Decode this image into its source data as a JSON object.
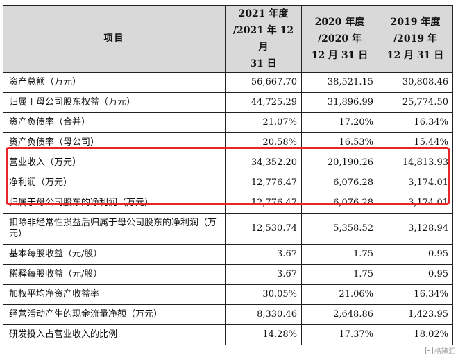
{
  "table": {
    "header": {
      "item": "项目",
      "col2021": [
        "2021 年度",
        "/2021 年 12 月",
        "31 日"
      ],
      "col2020": [
        "2020 年度",
        "/2020 年",
        "12 月 31 日"
      ],
      "col2019": [
        "2019 年度",
        "/2019 年",
        "12 月 31 日"
      ]
    },
    "rows": [
      {
        "label": "资产总额（万元）",
        "v2021": "56,667.70",
        "v2020": "38,521.15",
        "v2019": "30,808.46"
      },
      {
        "label": "归属于母公司股东权益（万元）",
        "v2021": "44,725.29",
        "v2020": "31,896.99",
        "v2019": "25,774.50"
      },
      {
        "label": "资产负债率（合并）",
        "v2021": "21.07%",
        "v2020": "17.20%",
        "v2019": "16.34%"
      },
      {
        "label": "资产负债率（母公司）",
        "v2021": "20.58%",
        "v2020": "16.53%",
        "v2019": "15.44%"
      },
      {
        "label": "营业收入（万元）",
        "v2021": "34,352.20",
        "v2020": "20,190.26",
        "v2019": "14,813.93"
      },
      {
        "label": "净利润（万元）",
        "v2021": "12,776.47",
        "v2020": "6,076.28",
        "v2019": "3,174.01"
      },
      {
        "label": "归属于母公司股东的净利润（万元）",
        "v2021": "12,776.47",
        "v2020": "6,076.28",
        "v2019": "3,174.01"
      },
      {
        "label": "扣除非经常性损益后归属于母公司股东的净利润（万元）",
        "v2021": "12,530.74",
        "v2020": "5,358.52",
        "v2019": "3,128.94"
      },
      {
        "label": "基本每股收益（元/股）",
        "v2021": "3.67",
        "v2020": "1.75",
        "v2019": "0.95"
      },
      {
        "label": "稀释每股收益（元/股）",
        "v2021": "3.67",
        "v2020": "1.75",
        "v2019": "0.95"
      },
      {
        "label": "加权平均净资产收益率",
        "v2021": "30.05%",
        "v2020": "21.06%",
        "v2019": "16.34%"
      },
      {
        "label": "经营活动产生的现金流量净额（万元）",
        "v2021": "8,330.46",
        "v2020": "2,648.86",
        "v2019": "1,423.95"
      },
      {
        "label": "研发投入占营业收入的比例",
        "v2021": "14.28%",
        "v2020": "17.37%",
        "v2019": "18.02%"
      }
    ]
  },
  "watermark": {
    "text": "格隆汇"
  },
  "colors": {
    "header_bg": "#d9d9d9",
    "border": "#222222",
    "highlight": "#e8262a"
  }
}
